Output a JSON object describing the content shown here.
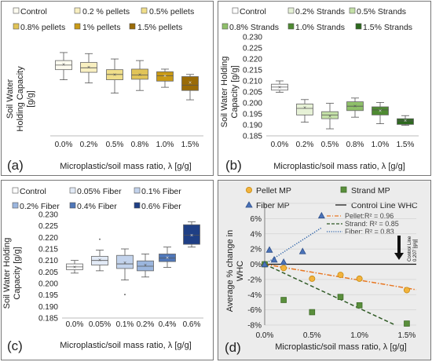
{
  "chart_data": [
    {
      "panel": "(a)",
      "type": "box",
      "title": "",
      "ylabel": "Soil Water Holding Capacity [g/g]",
      "ylabel_lines": [
        "Soil Water",
        "Holding Capacity",
        "[g/g]"
      ],
      "xlabel": "Microplastic/soil mass ratio, λ [g/g]",
      "categories": [
        "0.0%",
        "0.2%",
        "0.5%",
        "0.8%",
        "1.0%",
        "1.5%"
      ],
      "y_ticks_shown": false,
      "ylim": [
        0.18,
        0.215
      ],
      "legend": [
        "Control",
        "0.2 % pellets",
        "0.5% pellets",
        "0.8% pellets",
        "1% pellets",
        "1.5% pellets"
      ],
      "colors": [
        "#fdfbf0",
        "#f8efc0",
        "#f0de8a",
        "#e1c457",
        "#c99a16",
        "#9a6b06"
      ],
      "boxes": [
        {
          "min": 0.201,
          "q1": 0.2048,
          "median": 0.2065,
          "q3": 0.2082,
          "max": 0.2112,
          "mean": 0.2067
        },
        {
          "min": 0.1998,
          "q1": 0.2038,
          "median": 0.2055,
          "q3": 0.2075,
          "max": 0.2108,
          "mean": 0.2058
        },
        {
          "min": 0.196,
          "q1": 0.201,
          "median": 0.203,
          "q3": 0.2048,
          "max": 0.2088,
          "mean": 0.203
        },
        {
          "min": 0.197,
          "q1": 0.2012,
          "median": 0.2028,
          "q3": 0.205,
          "max": 0.2082,
          "mean": 0.203
        },
        {
          "min": 0.1982,
          "q1": 0.2005,
          "median": 0.2025,
          "q3": 0.204,
          "max": 0.205,
          "mean": 0.2025
        },
        {
          "min": 0.1935,
          "q1": 0.197,
          "median": 0.199,
          "q3": 0.2022,
          "max": 0.203,
          "mean": 0.2
        }
      ]
    },
    {
      "panel": "(b)",
      "type": "box",
      "title": "",
      "ylabel": "Soil Water Holding Capacity [g/g]",
      "ylabel_lines": [
        "Soil Water Holding",
        "Capacity [g/g]"
      ],
      "xlabel": "Microplastic/soil mass ratio, λ [g/g]",
      "categories": [
        "0.0%",
        "0.2%",
        "0.5%",
        "0.8%",
        "1.0%",
        "1.5%"
      ],
      "yticks": [
        "0.185",
        "0.190",
        "0.195",
        "0.200",
        "0.205",
        "0.210",
        "0.215",
        "0.220",
        "0.225",
        "0.230"
      ],
      "ylim": [
        0.185,
        0.23
      ],
      "legend": [
        "Control",
        "0.2% Strands",
        "0.5% Strands",
        "0.8% Strands",
        "1.0% Strands",
        "1.5% Strands"
      ],
      "colors": [
        "#ffffff",
        "#e6f1d6",
        "#c4e0a7",
        "#8fc06a",
        "#4e8a32",
        "#2d6a1e"
      ],
      "boxes": [
        {
          "min": 0.2048,
          "q1": 0.2058,
          "median": 0.2072,
          "q3": 0.2085,
          "max": 0.21,
          "mean": 0.2072
        },
        {
          "min": 0.1912,
          "q1": 0.1945,
          "median": 0.1975,
          "q3": 0.1995,
          "max": 0.2015,
          "mean": 0.1978
        },
        {
          "min": 0.1882,
          "q1": 0.1928,
          "median": 0.1945,
          "q3": 0.196,
          "max": 0.1998,
          "mean": 0.194
        },
        {
          "min": 0.1935,
          "q1": 0.1965,
          "median": 0.1985,
          "q3": 0.2005,
          "max": 0.2022,
          "mean": 0.1985
        },
        {
          "min": 0.1905,
          "q1": 0.1945,
          "median": 0.1968,
          "q3": 0.1982,
          "max": 0.2002,
          "mean": 0.1965
        },
        {
          "min": 0.1898,
          "q1": 0.1902,
          "median": 0.1918,
          "q3": 0.1928,
          "max": 0.1942,
          "mean": 0.192
        }
      ]
    },
    {
      "panel": "(c)",
      "type": "box",
      "title": "",
      "ylabel": "Soil Water Holding Capacity [g/g]",
      "ylabel_lines": [
        "Soil Water Holding",
        "Capacity [g/g]"
      ],
      "xlabel": "Microplastic/soil mass ratio, λ [g/g]",
      "categories": [
        "0.0%",
        "0.05%",
        "0.1%",
        "0.2%",
        "0.4%",
        "0.6%"
      ],
      "yticks": [
        "0.185",
        "0.190",
        "0.195",
        "0.200",
        "0.205",
        "0.210",
        "0.215",
        "0.220",
        "0.225",
        "0.230"
      ],
      "ylim": [
        0.185,
        0.23
      ],
      "legend": [
        "Control",
        "0.05% Fiber",
        "0.1% Fiber",
        "0.2% Fiber",
        "0.4% Fiber",
        "0.6% Fiber"
      ],
      "colors": [
        "#ffffff",
        "#e2eaf6",
        "#c3d3ec",
        "#9bb6de",
        "#4f77b9",
        "#1f3f85"
      ],
      "boxes": [
        {
          "min": 0.2045,
          "q1": 0.206,
          "median": 0.2072,
          "q3": 0.2085,
          "max": 0.21,
          "mean": 0.2072,
          "outliers": []
        },
        {
          "min": 0.2055,
          "q1": 0.208,
          "median": 0.21,
          "q3": 0.2118,
          "max": 0.2145,
          "mean": 0.2102,
          "outliers": [
            0.2192
          ]
        },
        {
          "min": 0.2015,
          "q1": 0.2065,
          "median": 0.2085,
          "q3": 0.2122,
          "max": 0.215,
          "mean": 0.209,
          "outliers": [
            0.1952
          ]
        },
        {
          "min": 0.2028,
          "q1": 0.2055,
          "median": 0.2075,
          "q3": 0.2098,
          "max": 0.2128,
          "mean": 0.208,
          "outliers": []
        },
        {
          "min": 0.207,
          "q1": 0.2095,
          "median": 0.211,
          "q3": 0.2128,
          "max": 0.2158,
          "mean": 0.2112,
          "outliers": []
        },
        {
          "min": 0.2158,
          "q1": 0.217,
          "median": 0.221,
          "q3": 0.2255,
          "max": 0.2268,
          "mean": 0.221,
          "outliers": []
        }
      ]
    },
    {
      "panel": "(d)",
      "type": "scatter",
      "title": "",
      "ylabel": "Average % change in WHC",
      "ylabel_lines": [
        "Average % change in",
        "WHC"
      ],
      "xlabel": "Microplastic/soil mass ratio, λ [g/g]",
      "xticks": [
        "0.0%",
        "0.5%",
        "1.0%",
        "1.5%"
      ],
      "xtick_values": [
        0.0,
        0.5,
        1.0,
        1.5
      ],
      "yticks": [
        "-8%",
        "-6%",
        "-4%",
        "-2%",
        "0%",
        "2%",
        "4%",
        "6%",
        "8%"
      ],
      "ytick_values": [
        -8,
        -6,
        -4,
        -2,
        0,
        2,
        4,
        6,
        8
      ],
      "xlim": [
        0.0,
        1.6
      ],
      "ylim": [
        -8,
        8
      ],
      "grid": "horizontal",
      "background": "#ececec",
      "legend": [
        "Pellet MP",
        "Strand MP",
        "Fiber MP",
        "Control Line WHC"
      ],
      "annotations": [
        {
          "text": "Pellet:R² = 0.96",
          "color": "#e87722"
        },
        {
          "text": "Strand: R² = 0.85",
          "color": "#2f5a25"
        },
        {
          "text": "Fiber: R² = 0.83",
          "color": "#2e63a8"
        },
        {
          "text": "Control Line",
          "color": "#111111"
        },
        {
          "text": "0.207 [g/g]",
          "color": "#111111"
        }
      ],
      "series": [
        {
          "name": "Pellet MP",
          "marker": "circle",
          "color": "#f2b33d",
          "edge": "#c68b12",
          "x": [
            0.0,
            0.2,
            0.5,
            0.8,
            1.0,
            1.5
          ],
          "y": [
            0.0,
            -0.5,
            -1.9,
            -1.4,
            -1.9,
            -3.4
          ],
          "fit": {
            "x": [
              0.0,
              1.6
            ],
            "y": [
              0.0,
              -3.35
            ],
            "style": "dashdot",
            "color": "#e87722"
          }
        },
        {
          "name": "Strand MP",
          "marker": "square",
          "color": "#5a8f3c",
          "edge": "#3d6a26",
          "x": [
            0.0,
            0.2,
            0.5,
            0.8,
            1.0,
            1.5
          ],
          "y": [
            0.0,
            -4.7,
            -6.3,
            -4.3,
            -5.4,
            -7.8
          ],
          "fit": {
            "x": [
              0.0,
              1.38
            ],
            "y": [
              0.0,
              -8.0
            ],
            "style": "dash",
            "color": "#2f5a25"
          }
        },
        {
          "name": "Fiber MP",
          "marker": "triangle",
          "color": "#4a72b8",
          "edge": "#2e4f8a",
          "x": [
            0.0,
            0.05,
            0.1,
            0.2,
            0.4,
            0.6
          ],
          "y": [
            0.0,
            1.9,
            0.6,
            0.3,
            1.7,
            6.4
          ],
          "fit": {
            "x": [
              0.0,
              0.6
            ],
            "y": [
              0.0,
              4.8
            ],
            "style": "dot",
            "color": "#2e63a8"
          }
        }
      ]
    }
  ]
}
